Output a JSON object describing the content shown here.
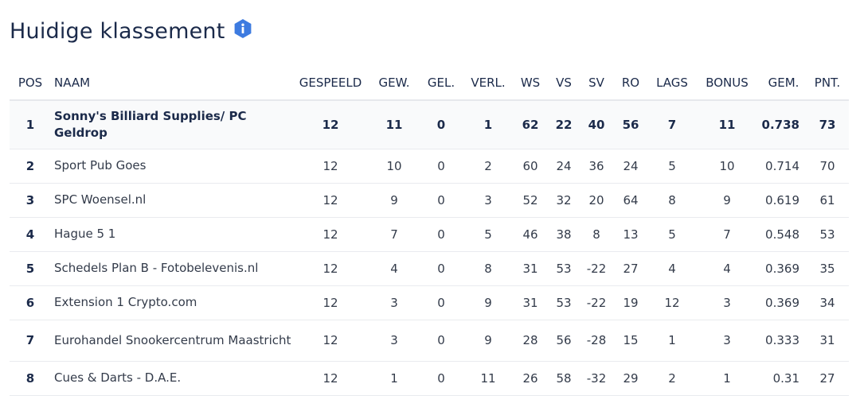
{
  "page": {
    "title": "Huidige klassement",
    "info_icon": "info-icon",
    "accent_color": "#3d7be0"
  },
  "table": {
    "headers": {
      "pos": "POS",
      "naam": "NAAM",
      "gespeeld": "GESPEELD",
      "gew": "GEW.",
      "gel": "GEL.",
      "verl": "VERL.",
      "ws": "WS",
      "vs": "VS",
      "sv": "SV",
      "ro": "RO",
      "lags": "LAGS",
      "bonus": "BONUS",
      "gem": "GEM.",
      "pnt": "PNT."
    },
    "rows": [
      {
        "pos": "1",
        "naam": "Sonny's Billiard Supplies/ PC Geldrop",
        "gespeeld": "12",
        "gew": "11",
        "gel": "0",
        "verl": "1",
        "ws": "62",
        "vs": "22",
        "sv": "40",
        "ro": "56",
        "lags": "7",
        "bonus": "11",
        "gem": "0.738",
        "pnt": "73"
      },
      {
        "pos": "2",
        "naam": "Sport Pub Goes",
        "gespeeld": "12",
        "gew": "10",
        "gel": "0",
        "verl": "2",
        "ws": "60",
        "vs": "24",
        "sv": "36",
        "ro": "24",
        "lags": "5",
        "bonus": "10",
        "gem": "0.714",
        "pnt": "70"
      },
      {
        "pos": "3",
        "naam": "SPC Woensel.nl",
        "gespeeld": "12",
        "gew": "9",
        "gel": "0",
        "verl": "3",
        "ws": "52",
        "vs": "32",
        "sv": "20",
        "ro": "64",
        "lags": "8",
        "bonus": "9",
        "gem": "0.619",
        "pnt": "61"
      },
      {
        "pos": "4",
        "naam": "Hague 5 1",
        "gespeeld": "12",
        "gew": "7",
        "gel": "0",
        "verl": "5",
        "ws": "46",
        "vs": "38",
        "sv": "8",
        "ro": "13",
        "lags": "5",
        "bonus": "7",
        "gem": "0.548",
        "pnt": "53"
      },
      {
        "pos": "5",
        "naam": "Schedels Plan B - Fotobelevenis.nl",
        "gespeeld": "12",
        "gew": "4",
        "gel": "0",
        "verl": "8",
        "ws": "31",
        "vs": "53",
        "sv": "-22",
        "ro": "27",
        "lags": "4",
        "bonus": "4",
        "gem": "0.369",
        "pnt": "35"
      },
      {
        "pos": "6",
        "naam": "Extension 1 Crypto.com",
        "gespeeld": "12",
        "gew": "3",
        "gel": "0",
        "verl": "9",
        "ws": "31",
        "vs": "53",
        "sv": "-22",
        "ro": "19",
        "lags": "12",
        "bonus": "3",
        "gem": "0.369",
        "pnt": "34"
      },
      {
        "pos": "7",
        "naam": "Eurohandel Snookercentrum Maastricht",
        "gespeeld": "12",
        "gew": "3",
        "gel": "0",
        "verl": "9",
        "ws": "28",
        "vs": "56",
        "sv": "-28",
        "ro": "15",
        "lags": "1",
        "bonus": "3",
        "gem": "0.333",
        "pnt": "31"
      },
      {
        "pos": "8",
        "naam": "Cues & Darts - D.A.E.",
        "gespeeld": "12",
        "gew": "1",
        "gel": "0",
        "verl": "11",
        "ws": "26",
        "vs": "58",
        "sv": "-32",
        "ro": "29",
        "lags": "2",
        "bonus": "1",
        "gem": "0.31",
        "pnt": "27"
      }
    ]
  }
}
